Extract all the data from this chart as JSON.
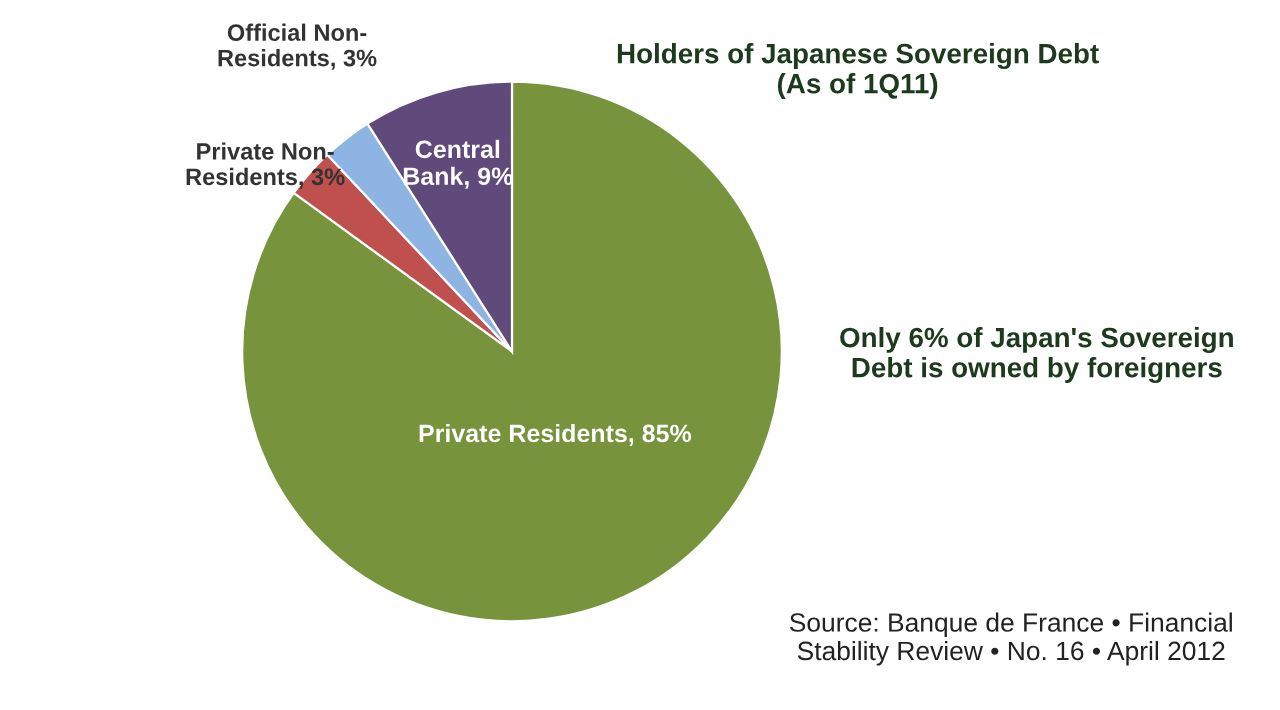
{
  "chart_data": {
    "type": "pie",
    "title": "Holders of Japanese Sovereign Debt\n(As of 1Q11)",
    "categories": [
      "Private Residents",
      "Private Non-\nResidents",
      "Official Non-\nResidents",
      "Central\nBank"
    ],
    "value_labels": [
      "85%",
      "3%",
      "3%",
      "9%"
    ],
    "values": [
      85,
      3,
      3,
      9
    ],
    "colors": [
      "#77933c",
      "#c0504d",
      "#8eb4e3",
      "#604a7b"
    ],
    "annotations": [
      "Only 6% of Japan's Sovereign\nDebt is owned by foreigners",
      "Source: Banque de France • Financial\nStability Review • No. 16 • April 2012"
    ]
  }
}
